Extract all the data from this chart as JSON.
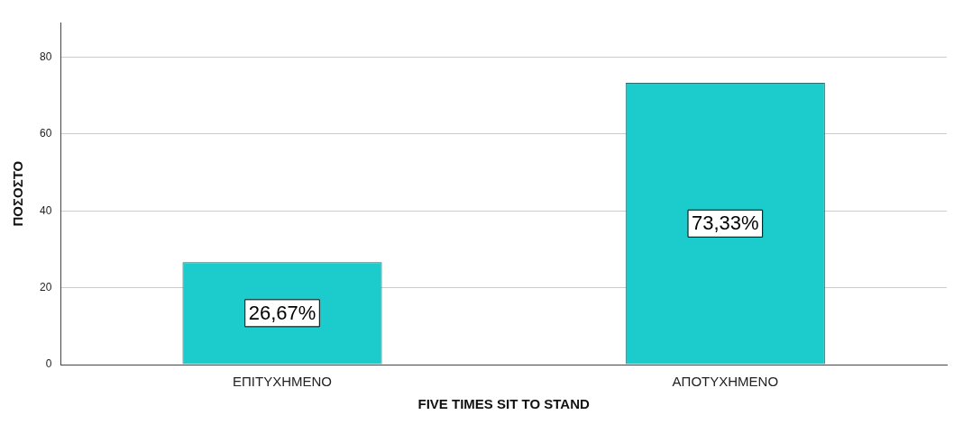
{
  "chart_data": {
    "type": "bar",
    "xlabel": "FIVE TIMES SIT TO STAND",
    "ylabel": "ΠΟΣΟΣΤΟ",
    "categories": [
      "ΕΠΙΤΥΧΗΜΕΝΟ",
      "ΑΠΟΤΥΧΗΜΕΝΟ"
    ],
    "values": [
      26.67,
      73.33
    ],
    "value_labels": [
      "26,67%",
      "73,33%"
    ],
    "color": "#1ccccc",
    "ylim": [
      0,
      89
    ],
    "yticks": [
      0,
      20,
      40,
      60,
      80
    ],
    "grid": "y"
  }
}
